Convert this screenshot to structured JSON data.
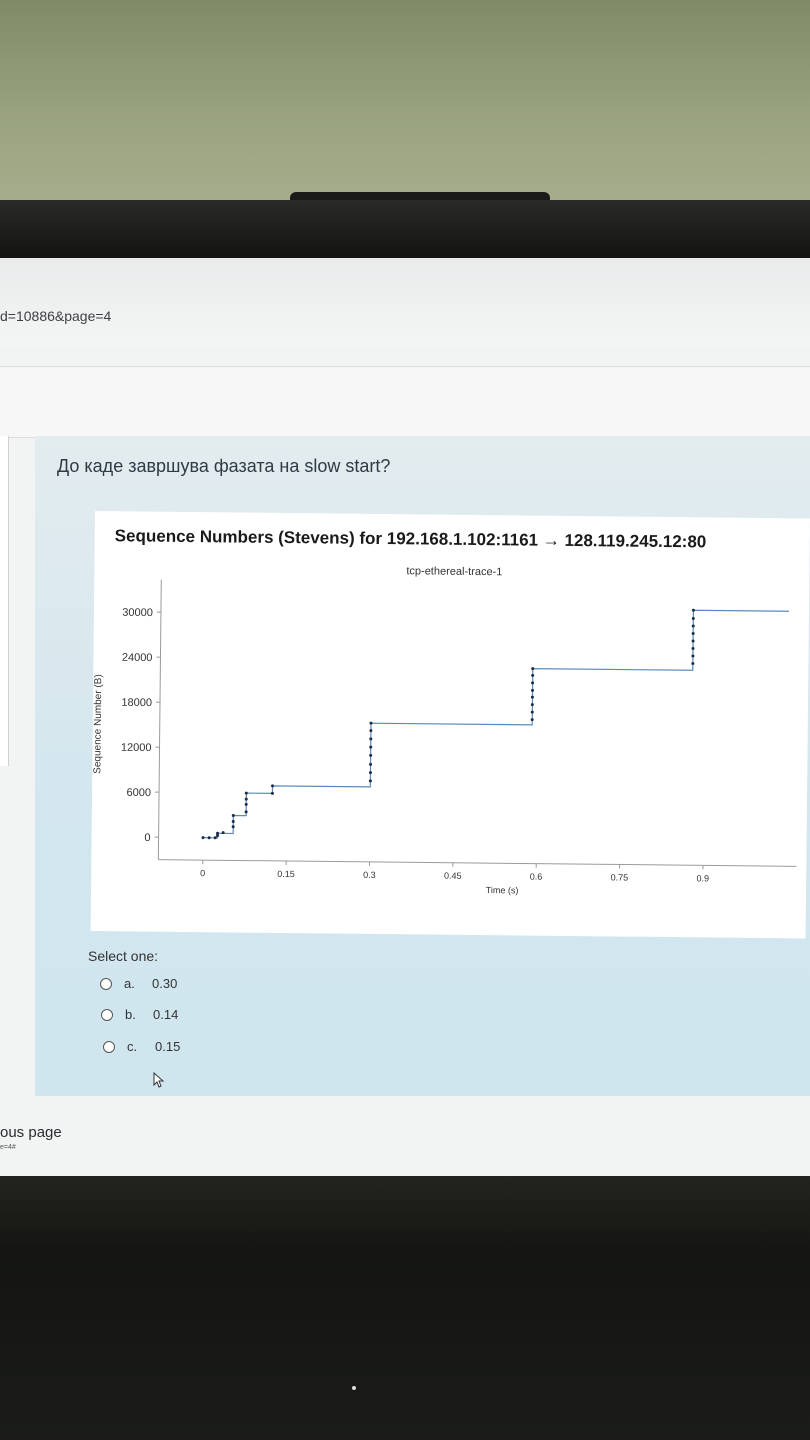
{
  "browser": {
    "url_fragment": "d=10886&page=4"
  },
  "question": {
    "text": "До каде завршува фазата на slow start?",
    "select_label": "Select one:",
    "options": [
      {
        "letter": "a.",
        "value": "0.30"
      },
      {
        "letter": "b.",
        "value": "0.14"
      },
      {
        "letter": "c.",
        "value": "0.15"
      }
    ]
  },
  "nav": {
    "previous_page": "ous page",
    "previous_sub": "e=4#"
  },
  "chart_data": {
    "type": "scatter",
    "title": "Sequence Numbers (Stevens) for 192.168.1.102:1161 → 128.119.245.12:80",
    "subtitle": "tcp-ethereal-trace-1",
    "xlabel": "Time (s)",
    "ylabel": "Sequence Number (B)",
    "x_ticks": [
      0,
      0.15,
      0.3,
      0.45,
      0.6,
      0.75,
      0.9
    ],
    "y_ticks": [
      0,
      6000,
      12000,
      18000,
      24000,
      30000
    ],
    "xlim": [
      -0.08,
      1.05
    ],
    "ylim": [
      -3000,
      33000
    ],
    "line": [
      [
        0.0,
        0
      ],
      [
        0.026,
        0
      ],
      [
        0.026,
        600
      ],
      [
        0.054,
        600
      ],
      [
        0.054,
        3000
      ],
      [
        0.077,
        3000
      ],
      [
        0.077,
        6000
      ],
      [
        0.124,
        6000
      ],
      [
        0.124,
        7000
      ],
      [
        0.3,
        7000
      ],
      [
        0.3,
        15500
      ],
      [
        0.59,
        15500
      ],
      [
        0.59,
        23000
      ],
      [
        0.878,
        23000
      ],
      [
        0.878,
        31000
      ],
      [
        1.05,
        31000
      ]
    ],
    "points": [
      [
        0.0,
        0
      ],
      [
        0.011,
        0
      ],
      [
        0.022,
        0
      ],
      [
        0.026,
        300
      ],
      [
        0.026,
        600
      ],
      [
        0.036,
        700
      ],
      [
        0.054,
        1500
      ],
      [
        0.054,
        2200
      ],
      [
        0.054,
        3000
      ],
      [
        0.077,
        3500
      ],
      [
        0.077,
        4500
      ],
      [
        0.077,
        5200
      ],
      [
        0.077,
        6000
      ],
      [
        0.124,
        6000
      ],
      [
        0.124,
        7000
      ],
      [
        0.3,
        7800
      ],
      [
        0.3,
        8900
      ],
      [
        0.3,
        10000
      ],
      [
        0.3,
        11200
      ],
      [
        0.3,
        12300
      ],
      [
        0.3,
        13400
      ],
      [
        0.3,
        14500
      ],
      [
        0.3,
        15500
      ],
      [
        0.59,
        16200
      ],
      [
        0.59,
        17200
      ],
      [
        0.59,
        18200
      ],
      [
        0.59,
        19200
      ],
      [
        0.59,
        20100
      ],
      [
        0.59,
        21100
      ],
      [
        0.59,
        22100
      ],
      [
        0.59,
        23000
      ],
      [
        0.878,
        23900
      ],
      [
        0.878,
        24900
      ],
      [
        0.878,
        25900
      ],
      [
        0.878,
        26900
      ],
      [
        0.878,
        27900
      ],
      [
        0.878,
        28900
      ],
      [
        0.878,
        29900
      ],
      [
        0.878,
        31000
      ]
    ],
    "grid": false,
    "colors": {
      "line": "#5b8bbd",
      "points": "#1f2a44",
      "axis": "#9a9a9a"
    }
  }
}
